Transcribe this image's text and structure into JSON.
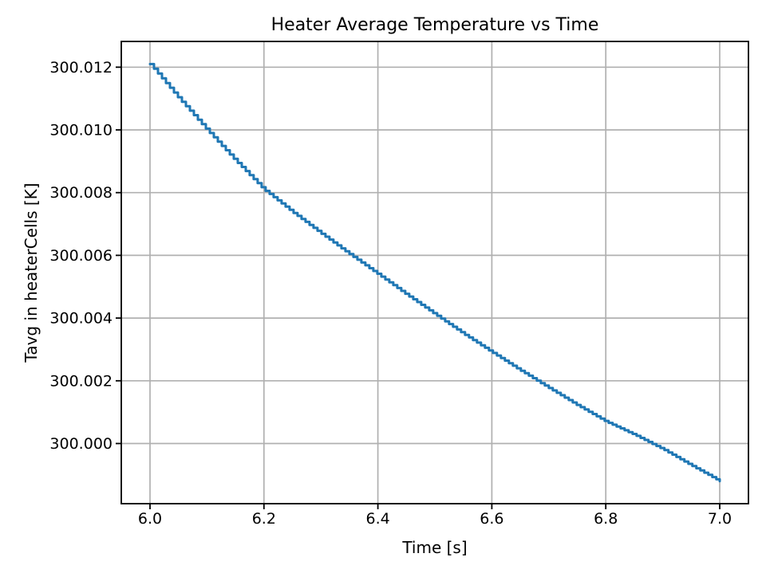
{
  "chart_data": {
    "type": "line",
    "title": "Heater Average Temperature vs Time",
    "xlabel": "Time [s]",
    "ylabel": "Tavg in heaterCells [K]",
    "grid": true,
    "legend": false,
    "xlim": [
      5.95,
      7.05
    ],
    "ylim": [
      299.99814,
      300.01277
    ],
    "x_ticks": [
      6.0,
      6.2,
      6.4,
      6.6,
      6.8,
      7.0
    ],
    "x_tick_labels": [
      "6.0",
      "6.2",
      "6.4",
      "6.6",
      "6.8",
      "7.0"
    ],
    "y_ticks": [
      300.0,
      300.002,
      300.004,
      300.006,
      300.008,
      300.01,
      300.012
    ],
    "y_tick_labels": [
      "300.000",
      "300.002",
      "300.004",
      "300.006",
      "300.008",
      "300.010",
      "300.012"
    ],
    "colors": {
      "line": "#1f77b4",
      "grid": "#b0b0b0",
      "axes": "#000000",
      "background": "#ffffff"
    },
    "series": [
      {
        "name": "Tavg in heaterCells",
        "color": "#1f77b4",
        "style": "steps-post",
        "step_dt": 0.007,
        "points": [
          [
            6.0,
            300.0121
          ],
          [
            6.05,
            300.01102
          ],
          [
            6.1,
            300.01
          ],
          [
            6.15,
            300.00902
          ],
          [
            6.2,
            300.0081
          ],
          [
            6.25,
            300.00738
          ],
          [
            6.3,
            300.0067
          ],
          [
            6.35,
            300.00604
          ],
          [
            6.4,
            300.0054
          ],
          [
            6.45,
            300.00475
          ],
          [
            6.5,
            300.00412
          ],
          [
            6.55,
            300.0035
          ],
          [
            6.6,
            300.00291
          ],
          [
            6.65,
            300.00233
          ],
          [
            6.7,
            300.00177
          ],
          [
            6.75,
            300.00122
          ],
          [
            6.8,
            300.0007
          ],
          [
            6.85,
            300.00028
          ],
          [
            6.9,
            299.99982
          ],
          [
            6.95,
            299.9993
          ],
          [
            7.0,
            299.9988
          ]
        ]
      }
    ]
  }
}
